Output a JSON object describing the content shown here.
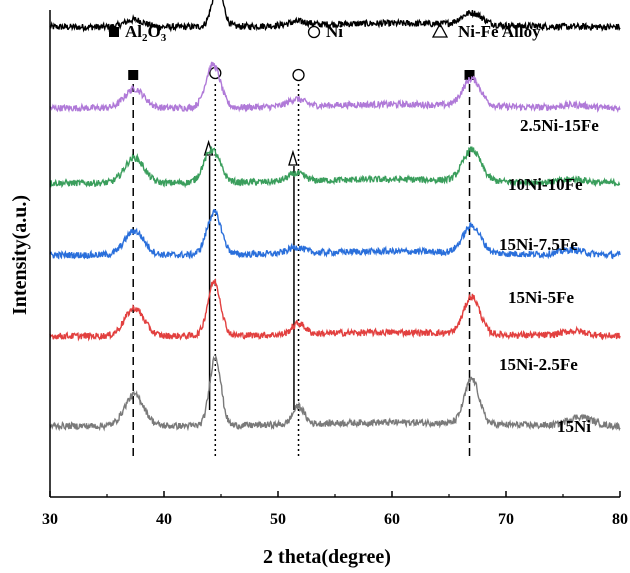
{
  "chart_data": {
    "type": "line",
    "title": "",
    "xlabel": "2 theta(degree)",
    "ylabel": "Intensity(a.u.)",
    "xlim": [
      30,
      80
    ],
    "xticks": [
      30,
      40,
      50,
      60,
      70,
      80
    ],
    "y_units": "arbitrary (stacked, offset traces)",
    "grid": false,
    "legend": {
      "placement": "top",
      "entries": [
        {
          "marker": "filled-square",
          "label_main": "Al",
          "sub1": "2",
          "label_mid": "O",
          "sub2": "3"
        },
        {
          "marker": "open-circle",
          "label": "Ni"
        },
        {
          "marker": "open-triangle",
          "label": "Ni-Fe Alloy"
        }
      ]
    },
    "reference_lines": [
      {
        "phase": "Al2O3",
        "x": 37.3,
        "style": "dashed",
        "marker": "filled-square"
      },
      {
        "phase": "Ni",
        "x": 44.5,
        "style": "dotted",
        "marker": "open-circle"
      },
      {
        "phase": "Ni",
        "x": 51.8,
        "style": "dotted",
        "marker": "open-circle"
      },
      {
        "phase": "Al2O3",
        "x": 66.8,
        "style": "dashed",
        "marker": "filled-square"
      },
      {
        "phase": "Ni-Fe Alloy",
        "x": 44.0,
        "style": "solid",
        "marker": "open-triangle"
      },
      {
        "phase": "Ni-Fe Alloy",
        "x": 51.4,
        "style": "solid",
        "marker": "open-triangle"
      }
    ],
    "series": [
      {
        "name": "2.5Ni-15Fe",
        "color": "#000000",
        "baseline": 8.55,
        "peaks": [
          [
            37.4,
            0.12,
            1.2
          ],
          [
            44.7,
            0.65,
            0.7
          ],
          [
            51.8,
            0.06,
            1.2
          ],
          [
            67.0,
            0.2,
            1.3
          ]
        ]
      },
      {
        "name": "10Ni-10Fe",
        "color": "#b07ad8",
        "baseline": 7.2,
        "peaks": [
          [
            37.4,
            0.32,
            1.2
          ],
          [
            44.3,
            0.72,
            0.9
          ],
          [
            51.6,
            0.12,
            1.0
          ],
          [
            67.0,
            0.45,
            1.1
          ],
          [
            76.0,
            0.05,
            1.5
          ]
        ]
      },
      {
        "name": "15Ni-7.5Fe",
        "color": "#3a9e5c",
        "baseline": 5.95,
        "peaks": [
          [
            37.4,
            0.42,
            1.2
          ],
          [
            44.2,
            0.55,
            1.0
          ],
          [
            51.6,
            0.13,
            1.0
          ],
          [
            67.0,
            0.52,
            1.1
          ],
          [
            76.0,
            0.06,
            1.5
          ]
        ]
      },
      {
        "name": "15Ni-5Fe",
        "color": "#2a6fdb",
        "baseline": 4.75,
        "peaks": [
          [
            37.4,
            0.4,
            1.2
          ],
          [
            44.4,
            0.7,
            0.9
          ],
          [
            51.6,
            0.1,
            1.0
          ],
          [
            67.0,
            0.45,
            1.1
          ],
          [
            75.8,
            0.08,
            1.5
          ]
        ]
      },
      {
        "name": "15Ni-2.5Fe",
        "color": "#e2403f",
        "baseline": 3.4,
        "peaks": [
          [
            37.4,
            0.46,
            1.2
          ],
          [
            44.4,
            0.9,
            0.8
          ],
          [
            51.8,
            0.18,
            0.8
          ],
          [
            67.0,
            0.62,
            1.0
          ],
          [
            76.0,
            0.08,
            1.5
          ]
        ]
      },
      {
        "name": "15Ni",
        "color": "#7a7a7a",
        "baseline": 1.9,
        "peaks": [
          [
            37.4,
            0.52,
            1.2
          ],
          [
            44.5,
            1.15,
            0.7
          ],
          [
            51.8,
            0.3,
            0.7
          ],
          [
            67.0,
            0.75,
            0.9
          ],
          [
            76.5,
            0.15,
            1.5
          ]
        ]
      }
    ]
  }
}
